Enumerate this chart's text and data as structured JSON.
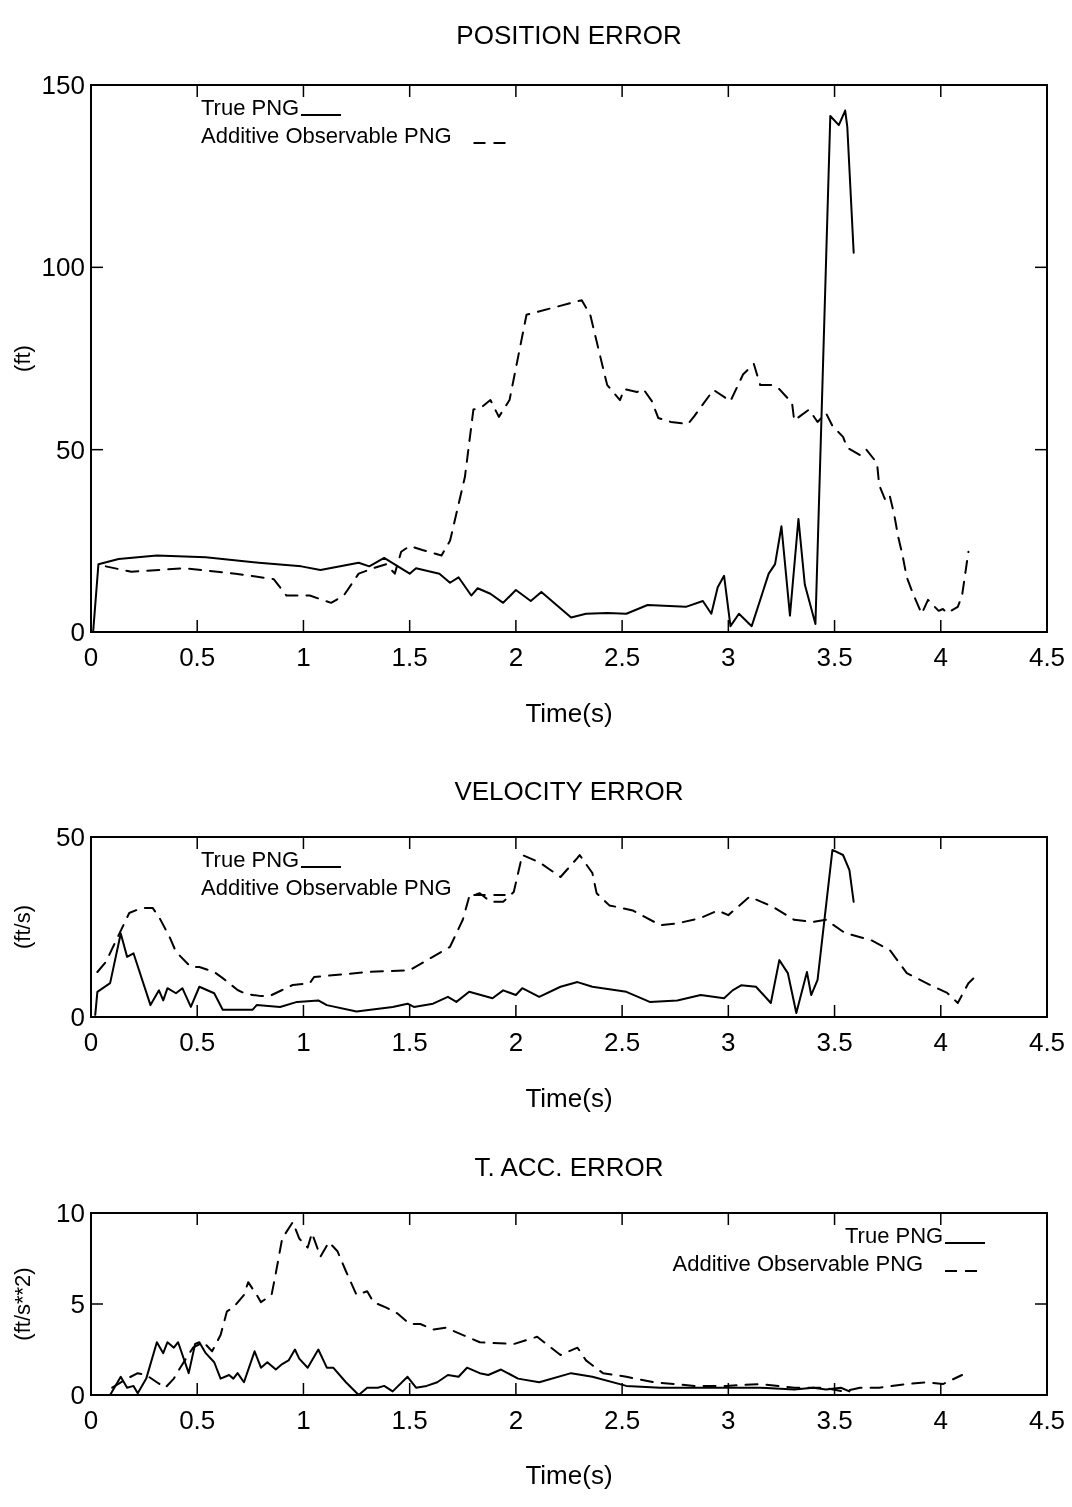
{
  "chart_data": [
    {
      "type": "line",
      "title": "POSITION ERROR",
      "xlabel": "Time(s)",
      "ylabel": "(ft)",
      "xlim": [
        0,
        4.5
      ],
      "xticks": [
        0,
        0.5,
        1,
        1.5,
        2,
        2.5,
        3,
        3.5,
        4,
        4.5
      ],
      "ylim": [
        0,
        150
      ],
      "yticks": [
        0,
        50,
        100,
        150
      ],
      "legend": "top left",
      "series": [
        {
          "name": "True PNG",
          "color": "#000000",
          "line_style": "solid",
          "x": [
            0.01,
            0.035,
            0.13,
            0.31,
            0.54,
            0.79,
            0.99,
            1.08,
            1.26,
            1.31,
            1.38,
            1.5,
            1.53,
            1.64,
            1.69,
            1.73,
            1.79,
            1.82,
            1.88,
            1.94,
            2.0,
            2.07,
            2.12,
            2.26,
            2.33,
            2.43,
            2.52,
            2.62,
            2.8,
            2.88,
            2.92,
            2.95,
            2.98,
            3.01,
            3.05,
            3.11,
            3.19,
            3.22,
            3.25,
            3.29,
            3.33,
            3.36,
            3.41,
            3.48,
            3.52,
            3.55,
            3.56,
            3.59
          ],
          "values": [
            0,
            18.6,
            20,
            21,
            20.5,
            19,
            18,
            17,
            19,
            18,
            20.3,
            16,
            17.5,
            16,
            13.5,
            15,
            10,
            12,
            10.5,
            8,
            11.5,
            8.5,
            11,
            4,
            5,
            5.2,
            5,
            7.4,
            6.9,
            8.5,
            5,
            12.3,
            15.4,
            1.6,
            5,
            1.6,
            16,
            18.6,
            29,
            4.5,
            31,
            13,
            2.2,
            141.5,
            139,
            143,
            138.5,
            104
          ]
        },
        {
          "name": "Additive Observable PNG",
          "color": "#000000",
          "line_style": "dashed",
          "x": [
            0.07,
            0.19,
            0.44,
            0.68,
            0.86,
            0.92,
            1.03,
            1.13,
            1.19,
            1.26,
            1.33,
            1.39,
            1.43,
            1.46,
            1.5,
            1.56,
            1.65,
            1.69,
            1.76,
            1.8,
            1.84,
            1.88,
            1.92,
            1.97,
            2.05,
            2.31,
            2.35,
            2.42,
            2.43,
            2.49,
            2.51,
            2.57,
            2.6,
            2.64,
            2.67,
            2.73,
            2.81,
            2.84,
            2.93,
            3.01,
            3.07,
            3.12,
            3.15,
            3.21,
            3.24,
            3.3,
            3.31,
            3.38,
            3.42,
            3.46,
            3.49,
            3.54,
            3.56,
            3.62,
            3.65,
            3.7,
            3.71,
            3.74,
            3.76,
            3.78,
            3.8,
            3.82,
            3.84,
            3.87,
            3.91,
            3.94,
            3.99,
            4.01,
            4.03,
            4.08,
            4.1,
            4.13
          ],
          "values": [
            18,
            16.5,
            17.5,
            16,
            14.5,
            10,
            10,
            8,
            10,
            16,
            17.5,
            18.6,
            16,
            22,
            23.6,
            22.5,
            21,
            25,
            42.5,
            61,
            61.7,
            63.6,
            59,
            63.6,
            87,
            91,
            87,
            70,
            67.7,
            63.6,
            66.6,
            65.8,
            66.6,
            63.3,
            58.7,
            57.6,
            57,
            59.2,
            66.4,
            63.3,
            70.7,
            73.5,
            67.7,
            67.7,
            66.6,
            62.8,
            58,
            61,
            57.6,
            60,
            56.5,
            53.5,
            50.5,
            48.5,
            50,
            46.3,
            40.3,
            36,
            37.3,
            32.4,
            26,
            21,
            15,
            10.4,
            5,
            8.8,
            5.8,
            6.3,
            5.2,
            6.9,
            9.9,
            22
          ]
        }
      ]
    },
    {
      "type": "line",
      "title": "VELOCITY ERROR",
      "xlabel": "Time(s)",
      "ylabel": "(ft/s)",
      "xlim": [
        0,
        4.5
      ],
      "xticks": [
        0,
        0.5,
        1,
        1.5,
        2,
        2.5,
        3,
        3.5,
        4,
        4.5
      ],
      "ylim": [
        0,
        50
      ],
      "yticks": [
        0,
        50
      ],
      "legend": "top left",
      "series": [
        {
          "name": "True PNG",
          "color": "#000000",
          "line_style": "solid",
          "x": [
            0.02,
            0.03,
            0.09,
            0.14,
            0.17,
            0.2,
            0.28,
            0.32,
            0.34,
            0.36,
            0.4,
            0.43,
            0.47,
            0.51,
            0.58,
            0.62,
            0.76,
            0.78,
            0.89,
            0.97,
            1.07,
            1.11,
            1.25,
            1.42,
            1.49,
            1.52,
            1.61,
            1.68,
            1.72,
            1.78,
            1.89,
            1.94,
            2.0,
            2.03,
            2.11,
            2.21,
            2.29,
            2.36,
            2.52,
            2.63,
            2.76,
            2.87,
            2.98,
            3.02,
            3.06,
            3.13,
            3.2,
            3.24,
            3.28,
            3.32,
            3.37,
            3.39,
            3.42,
            3.49,
            3.54,
            3.57,
            3.59
          ],
          "values": [
            0.6,
            7,
            9.4,
            23.2,
            16.7,
            17.7,
            3.3,
            7.4,
            4.6,
            8,
            6.6,
            8,
            2.8,
            8.4,
            6.6,
            2,
            2,
            3.3,
            2.8,
            4.2,
            4.6,
            3.3,
            1.5,
            2.8,
            3.7,
            2.8,
            3.7,
            5.6,
            4.2,
            7,
            5.2,
            7.4,
            6.1,
            8,
            5.6,
            8.4,
            9.7,
            8.4,
            7,
            4.2,
            4.6,
            6.1,
            5.2,
            7.4,
            8.8,
            8.4,
            3.9,
            15.8,
            12.2,
            1.1,
            12.5,
            6.1,
            10.3,
            46.4,
            45,
            40.8,
            32
          ]
        },
        {
          "name": "Additive Observable PNG",
          "color": "#000000",
          "line_style": "dashed",
          "x": [
            0.03,
            0.07,
            0.18,
            0.24,
            0.29,
            0.32,
            0.37,
            0.4,
            0.47,
            0.51,
            0.58,
            0.62,
            0.69,
            0.73,
            0.8,
            0.84,
            0.9,
            0.95,
            1.03,
            1.05,
            1.3,
            1.5,
            1.69,
            1.75,
            1.78,
            1.83,
            1.88,
            1.94,
            1.99,
            2.03,
            2.11,
            2.21,
            2.29,
            2.3,
            2.36,
            2.38,
            2.44,
            2.55,
            2.68,
            2.76,
            2.87,
            2.95,
            3.0,
            3.1,
            3.21,
            3.31,
            3.4,
            3.46,
            3.55,
            3.67,
            3.76,
            3.84,
            3.95,
            4.03,
            4.08,
            4.13,
            4.16
          ],
          "values": [
            12.5,
            15.3,
            28.9,
            30.3,
            30.3,
            27.8,
            22.2,
            18.1,
            13.9,
            13.9,
            12.5,
            10.8,
            7.5,
            6.4,
            5.8,
            5.8,
            7.5,
            8.9,
            9.4,
            11.1,
            12.5,
            13,
            19.5,
            27,
            33.4,
            34.4,
            32,
            32,
            34.7,
            45,
            43,
            38.9,
            44.2,
            45,
            40,
            34.4,
            31,
            29.6,
            25.5,
            26,
            27.5,
            29.6,
            28.3,
            33.4,
            30.6,
            27,
            26.4,
            27,
            23.3,
            21.4,
            18.6,
            12.2,
            8.9,
            6.7,
            3.9,
            9.4,
            11.1
          ]
        }
      ]
    },
    {
      "type": "line",
      "title": "T. ACC. ERROR",
      "xlabel": "Time(s)",
      "ylabel": "(ft/s**2)",
      "xlim": [
        0,
        4.5
      ],
      "xticks": [
        0,
        0.5,
        1,
        1.5,
        2,
        2.5,
        3,
        3.5,
        4,
        4.5
      ],
      "ylim": [
        0,
        10
      ],
      "yticks": [
        0,
        5,
        10
      ],
      "legend": "top right",
      "series": [
        {
          "name": "True PNG",
          "color": "#000000",
          "line_style": "solid",
          "x": [
            0,
            0.09,
            0.14,
            0.17,
            0.2,
            0.22,
            0.26,
            0.31,
            0.34,
            0.36,
            0.39,
            0.41,
            0.46,
            0.49,
            0.51,
            0.54,
            0.58,
            0.61,
            0.65,
            0.67,
            0.69,
            0.72,
            0.77,
            0.8,
            0.83,
            0.87,
            0.9,
            0.93,
            0.96,
            0.98,
            1.02,
            1.07,
            1.11,
            1.14,
            1.2,
            1.26,
            1.3,
            1.35,
            1.38,
            1.42,
            1.49,
            1.53,
            1.58,
            1.63,
            1.68,
            1.73,
            1.77,
            1.83,
            1.87,
            1.93,
            2.01,
            2.11,
            2.26,
            2.36,
            2.52,
            2.68,
            2.84,
            2.99,
            3.15,
            3.31,
            3.4,
            3.46,
            3.53,
            3.57
          ],
          "values": [
            0,
            0,
            1,
            0.4,
            0.5,
            0.1,
            0.9,
            2.9,
            2.3,
            2.9,
            2.6,
            2.9,
            1.2,
            2.8,
            2.9,
            2.3,
            1.8,
            0.9,
            1.1,
            0.9,
            1.2,
            0.7,
            2.4,
            1.5,
            1.8,
            1.4,
            1.7,
            1.9,
            2.5,
            2,
            1.5,
            2.5,
            1.5,
            1.5,
            0.7,
            0,
            0.4,
            0.4,
            0.5,
            0.2,
            1,
            0.4,
            0.5,
            0.7,
            1.1,
            1,
            1.5,
            1.2,
            1.1,
            1.4,
            0.9,
            0.7,
            1.2,
            1,
            0.5,
            0.4,
            0.4,
            0.4,
            0.4,
            0.3,
            0.4,
            0.3,
            0.4,
            0.2
          ]
        },
        {
          "name": "Additive Observable PNG",
          "color": "#000000",
          "line_style": "dashed",
          "x": [
            0.1,
            0.17,
            0.22,
            0.26,
            0.31,
            0.35,
            0.39,
            0.42,
            0.48,
            0.53,
            0.57,
            0.61,
            0.64,
            0.67,
            0.72,
            0.74,
            0.78,
            0.8,
            0.85,
            0.87,
            0.9,
            0.95,
            0.98,
            1.02,
            1.04,
            1.08,
            1.12,
            1.16,
            1.2,
            1.25,
            1.3,
            1.33,
            1.39,
            1.44,
            1.5,
            1.55,
            1.61,
            1.67,
            1.83,
            1.99,
            2.1,
            2.21,
            2.29,
            2.33,
            2.41,
            2.52,
            2.65,
            2.84,
            2.99,
            3.15,
            3.31,
            3.45,
            3.54,
            3.62,
            3.71,
            3.84,
            3.93,
            4.01,
            4.1
          ],
          "values": [
            0.4,
            0.9,
            1.2,
            1.1,
            0.7,
            0.4,
            0.9,
            1.5,
            2.6,
            2.9,
            2.4,
            3.3,
            4.6,
            4.8,
            5.5,
            6.2,
            5.5,
            5.1,
            5.5,
            6.7,
            8.6,
            9.5,
            8.6,
            8.1,
            8.9,
            7.6,
            8.4,
            7.9,
            6.8,
            5.5,
            5.7,
            5.1,
            4.8,
            4.5,
            3.9,
            3.9,
            3.6,
            3.7,
            2.9,
            2.8,
            3.2,
            2.2,
            2.6,
            1.9,
            1.2,
            1,
            0.7,
            0.5,
            0.5,
            0.6,
            0.4,
            0.4,
            0.2,
            0.4,
            0.4,
            0.6,
            0.7,
            0.6,
            1.1
          ]
        }
      ]
    }
  ]
}
